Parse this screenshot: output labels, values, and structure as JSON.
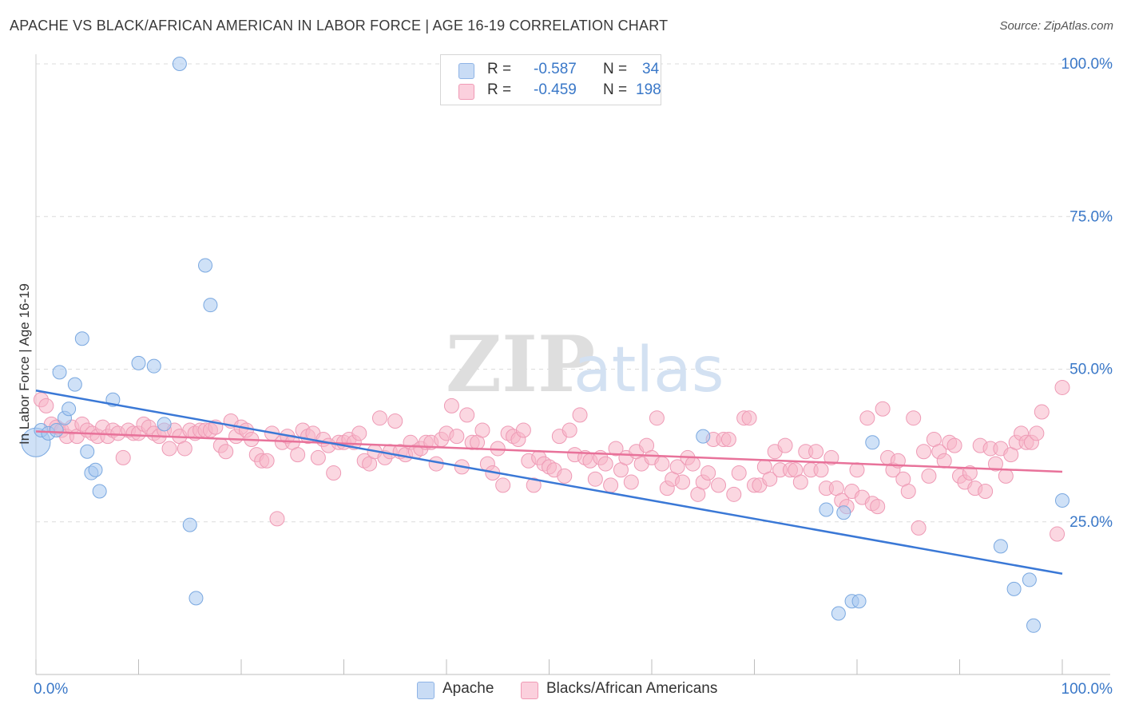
{
  "header": {
    "title": "APACHE VS BLACK/AFRICAN AMERICAN IN LABOR FORCE | AGE 16-19 CORRELATION CHART",
    "source": "Source: ZipAtlas.com"
  },
  "watermark": {
    "zip": "ZIP",
    "atlas": "atlas"
  },
  "legend": {
    "rows": [
      {
        "r_label": "R = ",
        "r_value": "-0.587",
        "n_label": "N = ",
        "n_value": "34",
        "color": "#a8c8f0"
      },
      {
        "r_label": "R = ",
        "r_value": "-0.459",
        "n_label": "N = ",
        "n_value": "198",
        "color": "#f7b6c9"
      }
    ]
  },
  "bottom_legend": [
    {
      "label": "Apache",
      "color": "#a8c8f0"
    },
    {
      "label": "Blacks/African Americans",
      "color": "#f7b6c9"
    }
  ],
  "chart_data": {
    "type": "scatter",
    "title": "APACHE VS BLACK/AFRICAN AMERICAN IN LABOR FORCE | AGE 16-19 CORRELATION CHART",
    "xlabel": "",
    "ylabel": "In Labor Force | Age 16-19",
    "xlim": [
      0,
      100
    ],
    "ylim": [
      0,
      100
    ],
    "x_tick_labels": [
      "0.0%",
      "100.0%"
    ],
    "y_tick_labels": [
      "25.0%",
      "50.0%",
      "75.0%",
      "100.0%"
    ],
    "y_ticks": [
      25,
      50,
      75,
      100
    ],
    "grid": true,
    "legend_position": "top-center",
    "colors": {
      "apache": "#3a78d6",
      "apache_fill": "#a8c8f0",
      "black": "#e8729a",
      "black_fill": "#f7b6c9",
      "axis_text": "#3a78c8"
    },
    "series": [
      {
        "name": "Apache",
        "trend": {
          "x": [
            0,
            100
          ],
          "y": [
            46.5,
            16.5
          ]
        },
        "points": [
          [
            0,
            38
          ],
          [
            0.5,
            40
          ],
          [
            1.2,
            39.5
          ],
          [
            2,
            40
          ],
          [
            2.3,
            49.5
          ],
          [
            2.8,
            42
          ],
          [
            3.2,
            43.5
          ],
          [
            3.8,
            47.5
          ],
          [
            4.5,
            55
          ],
          [
            5,
            36.5
          ],
          [
            5.4,
            33
          ],
          [
            5.8,
            33.5
          ],
          [
            6.2,
            30
          ],
          [
            7.5,
            45
          ],
          [
            10,
            51
          ],
          [
            11.5,
            50.5
          ],
          [
            12.5,
            41
          ],
          [
            14,
            100
          ],
          [
            15,
            24.5
          ],
          [
            15.6,
            12.5
          ],
          [
            16.5,
            67
          ],
          [
            17,
            60.5
          ],
          [
            65,
            39
          ],
          [
            77,
            27
          ],
          [
            78.2,
            10
          ],
          [
            78.7,
            26.5
          ],
          [
            79.5,
            12
          ],
          [
            80.2,
            12
          ],
          [
            81.5,
            38
          ],
          [
            94,
            21
          ],
          [
            95.3,
            14
          ],
          [
            96.8,
            15.5
          ],
          [
            97.2,
            8
          ],
          [
            100,
            28.5
          ]
        ]
      },
      {
        "name": "Blacks/African Americans",
        "trend": {
          "x": [
            0,
            100
          ],
          "y": [
            39.8,
            33.2
          ]
        },
        "points": [
          [
            0.5,
            45
          ],
          [
            1,
            44
          ],
          [
            1.5,
            41
          ],
          [
            2,
            40.5
          ],
          [
            2.5,
            40
          ],
          [
            3,
            39
          ],
          [
            3.5,
            40.5
          ],
          [
            4,
            39
          ],
          [
            4.5,
            41
          ],
          [
            5,
            40
          ],
          [
            5.5,
            39.5
          ],
          [
            6,
            39
          ],
          [
            6.5,
            40.5
          ],
          [
            7,
            39
          ],
          [
            7.5,
            40
          ],
          [
            8,
            39.5
          ],
          [
            8.5,
            35.5
          ],
          [
            9,
            40
          ],
          [
            9.5,
            39.5
          ],
          [
            10,
            39.5
          ],
          [
            10.5,
            41
          ],
          [
            11,
            40.5
          ],
          [
            11.5,
            39.5
          ],
          [
            12,
            39
          ],
          [
            12.5,
            40
          ],
          [
            13,
            37
          ],
          [
            13.5,
            40
          ],
          [
            14,
            39
          ],
          [
            14.5,
            37
          ],
          [
            15,
            40
          ],
          [
            15.5,
            39.5
          ],
          [
            16,
            40
          ],
          [
            16.5,
            40
          ],
          [
            17,
            40
          ],
          [
            17.5,
            40.5
          ],
          [
            18,
            37.5
          ],
          [
            18.5,
            36.5
          ],
          [
            19,
            41.5
          ],
          [
            19.5,
            39
          ],
          [
            20,
            40.5
          ],
          [
            20.5,
            40
          ],
          [
            21,
            38.5
          ],
          [
            21.5,
            36
          ],
          [
            22,
            35
          ],
          [
            22.5,
            35
          ],
          [
            23,
            39.5
          ],
          [
            23.5,
            25.5
          ],
          [
            24,
            38
          ],
          [
            24.5,
            39
          ],
          [
            25,
            38
          ],
          [
            25.5,
            36
          ],
          [
            26,
            40
          ],
          [
            26.5,
            39
          ],
          [
            27,
            39.5
          ],
          [
            27.5,
            35.5
          ],
          [
            28,
            38.5
          ],
          [
            28.5,
            37.5
          ],
          [
            29,
            33
          ],
          [
            29.5,
            38
          ],
          [
            30,
            38
          ],
          [
            30.5,
            38.5
          ],
          [
            31,
            38
          ],
          [
            31.5,
            39.5
          ],
          [
            32,
            35
          ],
          [
            32.5,
            34.5
          ],
          [
            33,
            36.5
          ],
          [
            33.5,
            42
          ],
          [
            34,
            35.5
          ],
          [
            34.5,
            36.5
          ],
          [
            35,
            41.5
          ],
          [
            35.5,
            36.5
          ],
          [
            36,
            36
          ],
          [
            36.5,
            38
          ],
          [
            37,
            36.5
          ],
          [
            37.5,
            37
          ],
          [
            38,
            38
          ],
          [
            38.5,
            38
          ],
          [
            39,
            34.5
          ],
          [
            39.5,
            38.5
          ],
          [
            40,
            39.5
          ],
          [
            40.5,
            44
          ],
          [
            41,
            39
          ],
          [
            41.5,
            34
          ],
          [
            42,
            42.5
          ],
          [
            42.5,
            38
          ],
          [
            43,
            38
          ],
          [
            43.5,
            40
          ],
          [
            44,
            34.5
          ],
          [
            44.5,
            33
          ],
          [
            45,
            37
          ],
          [
            45.5,
            31
          ],
          [
            46,
            39.5
          ],
          [
            46.5,
            39
          ],
          [
            47,
            38.5
          ],
          [
            47.5,
            40
          ],
          [
            48,
            35
          ],
          [
            48.5,
            31
          ],
          [
            49,
            35.5
          ],
          [
            49.5,
            34.5
          ],
          [
            50,
            34
          ],
          [
            50.5,
            33.5
          ],
          [
            51,
            39
          ],
          [
            51.5,
            32.5
          ],
          [
            52,
            40
          ],
          [
            52.5,
            36
          ],
          [
            53,
            42.5
          ],
          [
            53.5,
            35.5
          ],
          [
            54,
            35
          ],
          [
            54.5,
            32
          ],
          [
            55,
            35.5
          ],
          [
            55.5,
            34.5
          ],
          [
            56,
            31
          ],
          [
            56.5,
            37
          ],
          [
            57,
            33.5
          ],
          [
            57.5,
            35.5
          ],
          [
            58,
            31.5
          ],
          [
            58.5,
            36.5
          ],
          [
            59,
            34.5
          ],
          [
            59.5,
            37.5
          ],
          [
            60,
            35.5
          ],
          [
            60.5,
            42
          ],
          [
            61,
            34.5
          ],
          [
            61.5,
            30.5
          ],
          [
            62,
            32
          ],
          [
            62.5,
            34
          ],
          [
            63,
            31.5
          ],
          [
            63.5,
            35.5
          ],
          [
            64,
            34.5
          ],
          [
            64.5,
            29.5
          ],
          [
            65,
            31.5
          ],
          [
            65.5,
            33
          ],
          [
            66,
            38.5
          ],
          [
            66.5,
            31
          ],
          [
            67,
            38.5
          ],
          [
            67.5,
            38.5
          ],
          [
            68,
            29.5
          ],
          [
            68.5,
            33
          ],
          [
            69,
            42
          ],
          [
            69.5,
            42
          ],
          [
            70,
            31
          ],
          [
            70.5,
            31
          ],
          [
            71,
            34
          ],
          [
            71.5,
            32
          ],
          [
            72,
            36.5
          ],
          [
            72.5,
            33.5
          ],
          [
            73,
            37.5
          ],
          [
            73.5,
            33.5
          ],
          [
            74,
            33.5
          ],
          [
            74.5,
            31.5
          ],
          [
            75,
            36.5
          ],
          [
            75.5,
            33.5
          ],
          [
            76,
            36.5
          ],
          [
            76.5,
            33.5
          ],
          [
            77,
            30.5
          ],
          [
            77.5,
            35.5
          ],
          [
            78,
            30.5
          ],
          [
            78.5,
            28.5
          ],
          [
            79,
            27.5
          ],
          [
            79.5,
            30
          ],
          [
            80,
            33.5
          ],
          [
            80.5,
            29
          ],
          [
            81,
            42
          ],
          [
            81.5,
            28
          ],
          [
            82,
            27.5
          ],
          [
            82.5,
            43.5
          ],
          [
            83,
            35.5
          ],
          [
            83.5,
            33.5
          ],
          [
            84,
            35
          ],
          [
            84.5,
            32
          ],
          [
            85,
            30
          ],
          [
            85.5,
            42
          ],
          [
            86,
            24
          ],
          [
            86.5,
            36.5
          ],
          [
            87,
            32.5
          ],
          [
            87.5,
            38.5
          ],
          [
            88,
            36.5
          ],
          [
            88.5,
            35
          ],
          [
            89,
            38
          ],
          [
            89.5,
            37.5
          ],
          [
            90,
            32.5
          ],
          [
            90.5,
            31.5
          ],
          [
            91,
            33
          ],
          [
            91.5,
            30.5
          ],
          [
            92,
            37.5
          ],
          [
            92.5,
            30
          ],
          [
            93,
            37
          ],
          [
            93.5,
            34.5
          ],
          [
            94,
            37
          ],
          [
            94.5,
            32.5
          ],
          [
            95,
            36
          ],
          [
            95.5,
            38
          ],
          [
            96,
            39.5
          ],
          [
            96.5,
            38
          ],
          [
            97,
            38
          ],
          [
            97.5,
            39.5
          ],
          [
            98,
            43
          ],
          [
            99.5,
            23
          ],
          [
            100,
            47
          ]
        ]
      }
    ]
  }
}
